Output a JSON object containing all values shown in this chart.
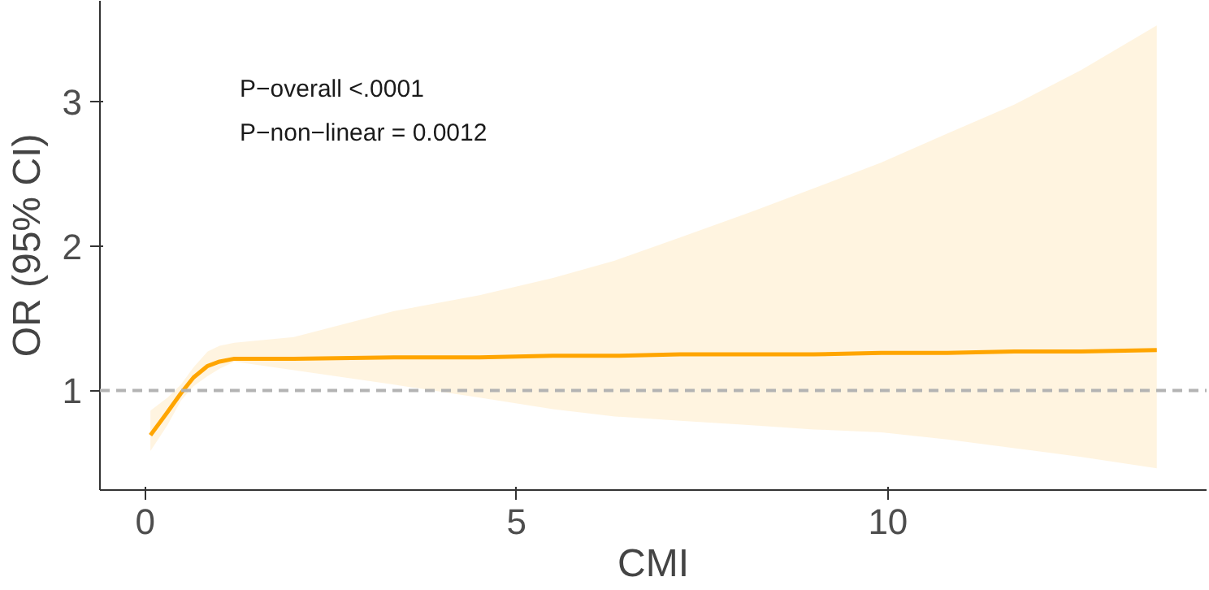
{
  "chart_data": {
    "type": "line",
    "xlabel": "CMI",
    "ylabel": "OR (95% CI)",
    "annotations": [
      "P−overall <.0001",
      "P−non−linear = 0.0012"
    ],
    "series": [
      {
        "color": "#ffa500",
        "x": [
          0.07,
          0.3,
          0.48,
          0.65,
          0.84,
          1.0,
          1.2,
          1.6,
          2.0,
          3.35,
          4.5,
          5.49,
          6.32,
          7.2,
          8.12,
          9.0,
          9.91,
          10.8,
          11.7,
          12.6,
          13.62
        ],
        "values": [
          0.69,
          0.85,
          0.98,
          1.09,
          1.17,
          1.2,
          1.22,
          1.22,
          1.22,
          1.23,
          1.23,
          1.24,
          1.24,
          1.25,
          1.25,
          1.25,
          1.26,
          1.26,
          1.27,
          1.27,
          1.28
        ],
        "lower": [
          0.58,
          0.76,
          0.93,
          1.03,
          1.1,
          1.15,
          1.2,
          1.17,
          1.14,
          1.04,
          0.95,
          0.87,
          0.82,
          0.79,
          0.76,
          0.73,
          0.71,
          0.66,
          0.6,
          0.54,
          0.46
        ],
        "upper": [
          0.86,
          0.95,
          1.04,
          1.16,
          1.27,
          1.31,
          1.33,
          1.35,
          1.37,
          1.55,
          1.66,
          1.78,
          1.9,
          2.06,
          2.23,
          2.4,
          2.58,
          2.78,
          2.98,
          3.22,
          3.53
        ]
      }
    ],
    "xlim": [
      -0.61,
      14.29
    ],
    "ylim": [
      0.31,
      3.7
    ],
    "xticks": [
      0,
      5,
      10
    ],
    "yticks": [
      1,
      2,
      3
    ],
    "ref_lines": [
      {
        "axis": "y",
        "value": 1,
        "color": "#b3b3b3",
        "line_style": "dashed"
      }
    ],
    "grid": false,
    "line_style": "solid"
  }
}
